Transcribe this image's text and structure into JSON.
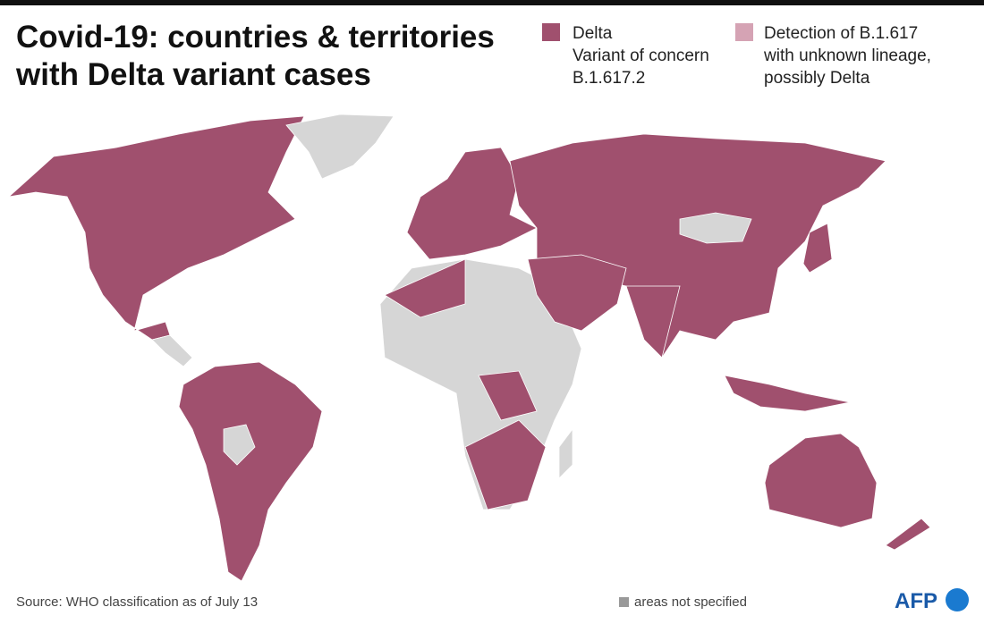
{
  "header": {
    "title": [
      "Covid-19: countries & territories",
      "with Delta variant cases"
    ]
  },
  "legend": [
    {
      "lines": [
        "Delta",
        "Variant of concern",
        "B.1.617.2"
      ]
    },
    {
      "lines": [
        "Detection of B.1.617",
        "with unknown lineage,",
        "possibly Delta"
      ]
    }
  ],
  "footer": {
    "source": "Source: WHO classification as of July 13",
    "note": "areas not specified",
    "logo": "AFP"
  }
}
